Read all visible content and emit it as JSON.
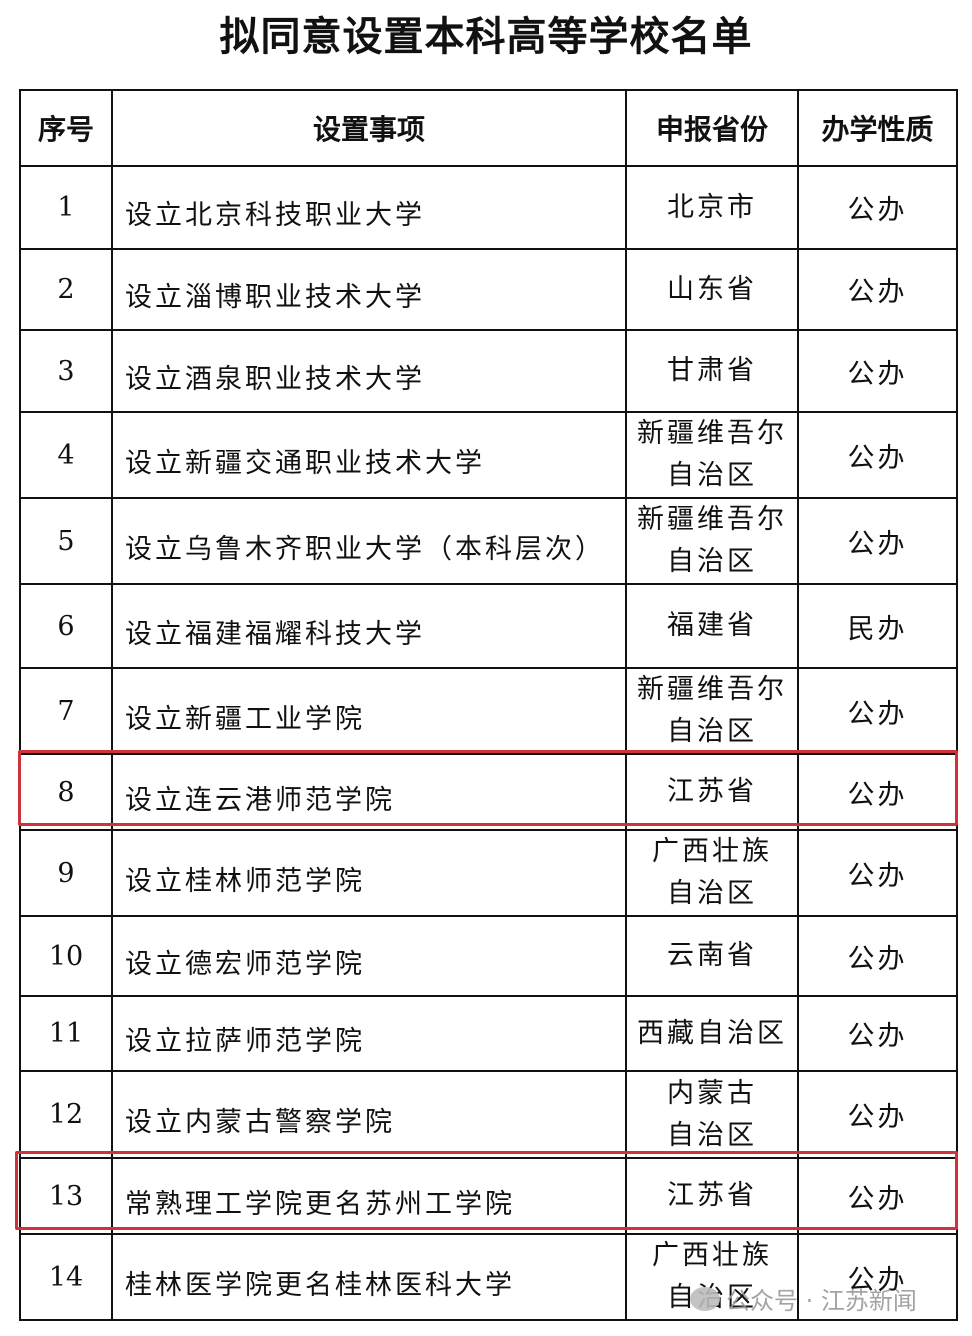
{
  "title": "拟同意设置本科高等学校名单",
  "headers": [
    "序号",
    "设置事项",
    "申报省份",
    "办学性质"
  ],
  "rows": [
    {
      "no": "1",
      "item": "设立北京科技职业大学",
      "province": [
        "北京市"
      ],
      "type": "公办"
    },
    {
      "no": "2",
      "item": "设立淄博职业技术大学",
      "province": [
        "山东省"
      ],
      "type": "公办"
    },
    {
      "no": "3",
      "item": "设立酒泉职业技术大学",
      "province": [
        "甘肃省"
      ],
      "type": "公办"
    },
    {
      "no": "4",
      "item": "设立新疆交通职业技术大学",
      "province": [
        "新疆维吾尔",
        "自治区"
      ],
      "type": "公办"
    },
    {
      "no": "5",
      "item": "设立乌鲁木齐职业大学（本科层次）",
      "province": [
        "新疆维吾尔",
        "自治区"
      ],
      "type": "公办"
    },
    {
      "no": "6",
      "item": "设立福建福耀科技大学",
      "province": [
        "福建省"
      ],
      "type": "民办"
    },
    {
      "no": "7",
      "item": "设立新疆工业学院",
      "province": [
        "新疆维吾尔",
        "自治区"
      ],
      "type": "公办"
    },
    {
      "no": "8",
      "item": "设立连云港师范学院",
      "province": [
        "江苏省"
      ],
      "type": "公办",
      "highlighted": true
    },
    {
      "no": "9",
      "item": "设立桂林师范学院",
      "province": [
        "广西壮族",
        "自治区"
      ],
      "type": "公办"
    },
    {
      "no": "10",
      "item": "设立德宏师范学院",
      "province": [
        "云南省"
      ],
      "type": "公办"
    },
    {
      "no": "11",
      "item": "设立拉萨师范学院",
      "province": [
        "西藏自治区"
      ],
      "type": "公办"
    },
    {
      "no": "12",
      "item": "设立内蒙古警察学院",
      "province": [
        "内蒙古",
        "自治区"
      ],
      "type": "公办"
    },
    {
      "no": "13",
      "item": "常熟理工学院更名苏州工学院",
      "province": [
        "江苏省"
      ],
      "type": "公办",
      "highlighted": true
    },
    {
      "no": "14",
      "item": "桂林医学院更名桂林医科大学",
      "province": [
        "广西壮族",
        "自治区"
      ],
      "type": "公办"
    }
  ],
  "highlight_color": "#d0313a",
  "watermark": "公众号 · 江苏新闻"
}
